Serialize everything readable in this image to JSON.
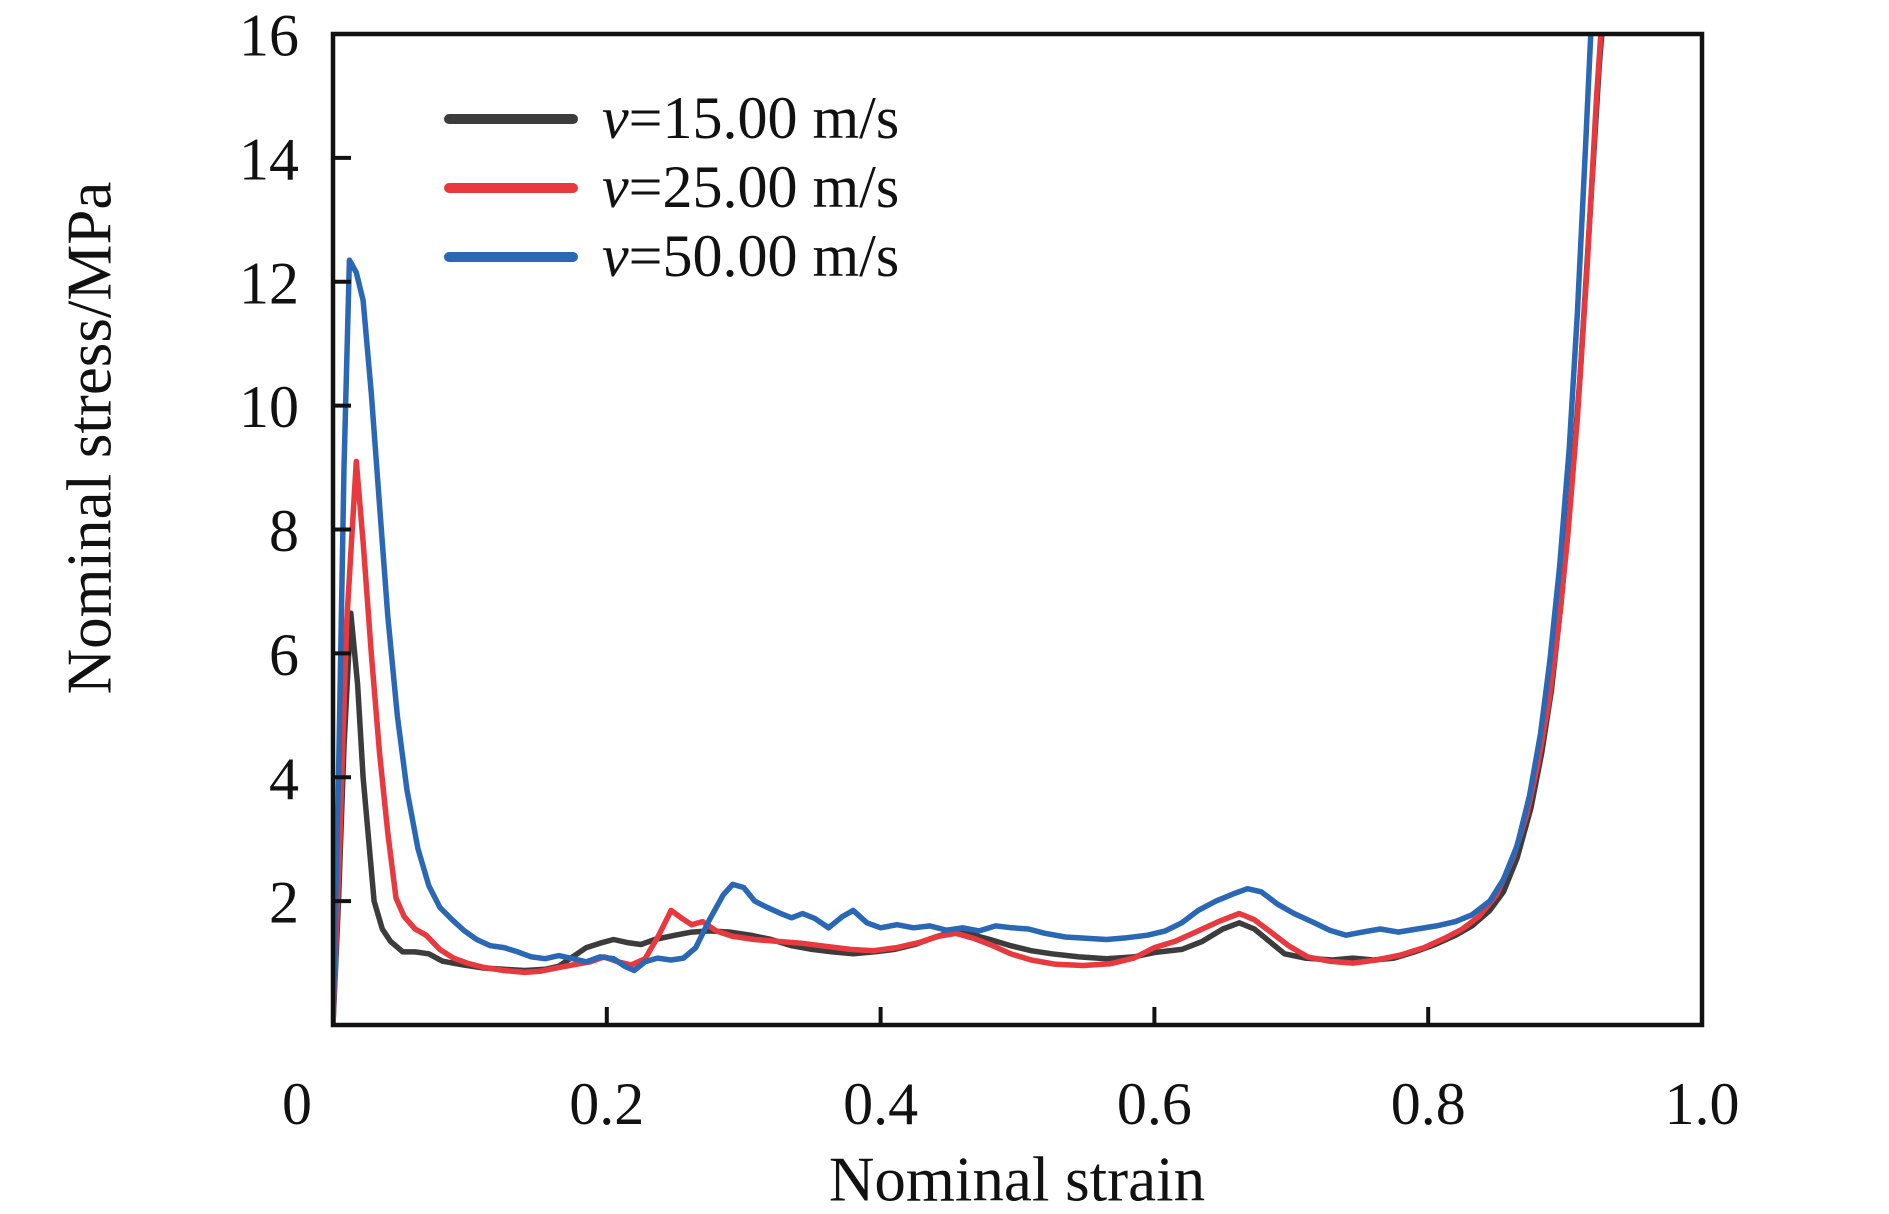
{
  "chart_data": {
    "type": "line",
    "title": "",
    "xlabel": "Nominal strain",
    "ylabel": "Nominal stress/MPa",
    "xlim": [
      0,
      1.0
    ],
    "ylim": [
      0,
      16
    ],
    "x_ticks": [
      0,
      0.2,
      0.4,
      0.6,
      0.8,
      1.0
    ],
    "x_tick_labels": [
      "0",
      "0.2",
      "0.4",
      "0.6",
      "0.8",
      "1.0"
    ],
    "y_ticks": [
      2,
      4,
      6,
      8,
      10,
      12,
      14,
      16
    ],
    "y_tick_labels": [
      "2",
      "4",
      "6",
      "8",
      "10",
      "12",
      "14",
      "16"
    ],
    "grid": false,
    "frame": "full-box",
    "tick_direction": "in",
    "legend_position": "upper-left-inside",
    "axis_color": "#111111",
    "series": [
      {
        "name": "v=15.00 m/s",
        "legend_prefix": "v",
        "legend_suffix": "=15.00 m/s",
        "color": "#3C3C3C",
        "points": [
          [
            0.0,
            0.0
          ],
          [
            0.004,
            2.0
          ],
          [
            0.008,
            4.5
          ],
          [
            0.013,
            6.65
          ],
          [
            0.018,
            5.5
          ],
          [
            0.022,
            4.0
          ],
          [
            0.026,
            3.0
          ],
          [
            0.03,
            2.0
          ],
          [
            0.036,
            1.55
          ],
          [
            0.042,
            1.35
          ],
          [
            0.051,
            1.18
          ],
          [
            0.06,
            1.18
          ],
          [
            0.07,
            1.15
          ],
          [
            0.08,
            1.03
          ],
          [
            0.095,
            0.97
          ],
          [
            0.11,
            0.92
          ],
          [
            0.125,
            0.9
          ],
          [
            0.14,
            0.88
          ],
          [
            0.155,
            0.9
          ],
          [
            0.165,
            0.95
          ],
          [
            0.175,
            1.1
          ],
          [
            0.185,
            1.25
          ],
          [
            0.195,
            1.32
          ],
          [
            0.205,
            1.38
          ],
          [
            0.215,
            1.33
          ],
          [
            0.225,
            1.3
          ],
          [
            0.235,
            1.38
          ],
          [
            0.25,
            1.45
          ],
          [
            0.262,
            1.5
          ],
          [
            0.275,
            1.52
          ],
          [
            0.29,
            1.5
          ],
          [
            0.305,
            1.45
          ],
          [
            0.32,
            1.38
          ],
          [
            0.335,
            1.28
          ],
          [
            0.35,
            1.22
          ],
          [
            0.365,
            1.18
          ],
          [
            0.38,
            1.15
          ],
          [
            0.395,
            1.18
          ],
          [
            0.41,
            1.22
          ],
          [
            0.425,
            1.3
          ],
          [
            0.44,
            1.42
          ],
          [
            0.452,
            1.5
          ],
          [
            0.465,
            1.47
          ],
          [
            0.48,
            1.38
          ],
          [
            0.495,
            1.28
          ],
          [
            0.51,
            1.2
          ],
          [
            0.525,
            1.15
          ],
          [
            0.545,
            1.1
          ],
          [
            0.565,
            1.07
          ],
          [
            0.585,
            1.1
          ],
          [
            0.6,
            1.17
          ],
          [
            0.62,
            1.22
          ],
          [
            0.635,
            1.35
          ],
          [
            0.65,
            1.55
          ],
          [
            0.662,
            1.65
          ],
          [
            0.673,
            1.55
          ],
          [
            0.684,
            1.35
          ],
          [
            0.695,
            1.15
          ],
          [
            0.71,
            1.08
          ],
          [
            0.73,
            1.05
          ],
          [
            0.745,
            1.08
          ],
          [
            0.76,
            1.05
          ],
          [
            0.775,
            1.08
          ],
          [
            0.79,
            1.18
          ],
          [
            0.805,
            1.3
          ],
          [
            0.82,
            1.45
          ],
          [
            0.832,
            1.6
          ],
          [
            0.845,
            1.85
          ],
          [
            0.855,
            2.15
          ],
          [
            0.865,
            2.7
          ],
          [
            0.875,
            3.5
          ],
          [
            0.883,
            4.4
          ],
          [
            0.89,
            5.4
          ],
          [
            0.897,
            6.8
          ],
          [
            0.904,
            8.5
          ],
          [
            0.911,
            10.5
          ],
          [
            0.918,
            13.0
          ],
          [
            0.925,
            15.5
          ],
          [
            0.929,
            16.6
          ]
        ]
      },
      {
        "name": "v=25.00 m/s",
        "legend_prefix": "v",
        "legend_suffix": "=25.00 m/s",
        "color": "#E8393F",
        "points": [
          [
            0.0,
            0.0
          ],
          [
            0.005,
            3.0
          ],
          [
            0.01,
            6.5
          ],
          [
            0.017,
            9.1
          ],
          [
            0.022,
            7.8
          ],
          [
            0.028,
            6.0
          ],
          [
            0.034,
            4.4
          ],
          [
            0.04,
            3.1
          ],
          [
            0.046,
            2.05
          ],
          [
            0.052,
            1.75
          ],
          [
            0.06,
            1.55
          ],
          [
            0.068,
            1.45
          ],
          [
            0.078,
            1.22
          ],
          [
            0.088,
            1.08
          ],
          [
            0.098,
            1.0
          ],
          [
            0.11,
            0.93
          ],
          [
            0.125,
            0.88
          ],
          [
            0.14,
            0.85
          ],
          [
            0.152,
            0.87
          ],
          [
            0.163,
            0.92
          ],
          [
            0.175,
            0.97
          ],
          [
            0.188,
            1.02
          ],
          [
            0.198,
            1.1
          ],
          [
            0.208,
            1.02
          ],
          [
            0.218,
            0.97
          ],
          [
            0.228,
            1.07
          ],
          [
            0.238,
            1.45
          ],
          [
            0.247,
            1.85
          ],
          [
            0.255,
            1.72
          ],
          [
            0.262,
            1.62
          ],
          [
            0.27,
            1.67
          ],
          [
            0.28,
            1.52
          ],
          [
            0.292,
            1.43
          ],
          [
            0.308,
            1.38
          ],
          [
            0.325,
            1.35
          ],
          [
            0.342,
            1.32
          ],
          [
            0.36,
            1.27
          ],
          [
            0.378,
            1.22
          ],
          [
            0.395,
            1.2
          ],
          [
            0.412,
            1.25
          ],
          [
            0.428,
            1.33
          ],
          [
            0.442,
            1.43
          ],
          [
            0.455,
            1.48
          ],
          [
            0.468,
            1.4
          ],
          [
            0.482,
            1.28
          ],
          [
            0.495,
            1.15
          ],
          [
            0.51,
            1.05
          ],
          [
            0.528,
            0.98
          ],
          [
            0.548,
            0.96
          ],
          [
            0.568,
            0.99
          ],
          [
            0.585,
            1.08
          ],
          [
            0.6,
            1.25
          ],
          [
            0.615,
            1.35
          ],
          [
            0.63,
            1.5
          ],
          [
            0.648,
            1.68
          ],
          [
            0.662,
            1.8
          ],
          [
            0.673,
            1.7
          ],
          [
            0.685,
            1.5
          ],
          [
            0.698,
            1.28
          ],
          [
            0.712,
            1.1
          ],
          [
            0.728,
            1.03
          ],
          [
            0.745,
            1.0
          ],
          [
            0.762,
            1.05
          ],
          [
            0.78,
            1.13
          ],
          [
            0.797,
            1.25
          ],
          [
            0.812,
            1.4
          ],
          [
            0.825,
            1.55
          ],
          [
            0.837,
            1.75
          ],
          [
            0.85,
            2.1
          ],
          [
            0.862,
            2.7
          ],
          [
            0.872,
            3.4
          ],
          [
            0.88,
            4.2
          ],
          [
            0.888,
            5.2
          ],
          [
            0.895,
            6.4
          ],
          [
            0.902,
            7.9
          ],
          [
            0.909,
            9.8
          ],
          [
            0.916,
            12.2
          ],
          [
            0.923,
            15.0
          ],
          [
            0.928,
            16.6
          ]
        ]
      },
      {
        "name": "v=50.00 m/s",
        "legend_prefix": "v",
        "legend_suffix": "=50.00 m/s",
        "color": "#2A68B5",
        "points": [
          [
            0.0,
            0.0
          ],
          [
            0.004,
            4.0
          ],
          [
            0.008,
            9.0
          ],
          [
            0.012,
            12.35
          ],
          [
            0.017,
            12.15
          ],
          [
            0.022,
            11.7
          ],
          [
            0.028,
            10.2
          ],
          [
            0.034,
            8.4
          ],
          [
            0.04,
            6.6
          ],
          [
            0.047,
            5.0
          ],
          [
            0.054,
            3.8
          ],
          [
            0.062,
            2.85
          ],
          [
            0.07,
            2.25
          ],
          [
            0.078,
            1.9
          ],
          [
            0.087,
            1.7
          ],
          [
            0.096,
            1.52
          ],
          [
            0.105,
            1.38
          ],
          [
            0.115,
            1.28
          ],
          [
            0.125,
            1.25
          ],
          [
            0.135,
            1.18
          ],
          [
            0.145,
            1.1
          ],
          [
            0.155,
            1.07
          ],
          [
            0.165,
            1.12
          ],
          [
            0.175,
            1.07
          ],
          [
            0.185,
            1.02
          ],
          [
            0.195,
            1.1
          ],
          [
            0.205,
            1.07
          ],
          [
            0.213,
            0.95
          ],
          [
            0.22,
            0.88
          ],
          [
            0.228,
            1.02
          ],
          [
            0.237,
            1.08
          ],
          [
            0.247,
            1.05
          ],
          [
            0.256,
            1.08
          ],
          [
            0.265,
            1.25
          ],
          [
            0.275,
            1.7
          ],
          [
            0.285,
            2.1
          ],
          [
            0.292,
            2.27
          ],
          [
            0.3,
            2.22
          ],
          [
            0.308,
            2.0
          ],
          [
            0.317,
            1.9
          ],
          [
            0.327,
            1.8
          ],
          [
            0.335,
            1.73
          ],
          [
            0.343,
            1.8
          ],
          [
            0.352,
            1.72
          ],
          [
            0.362,
            1.57
          ],
          [
            0.372,
            1.75
          ],
          [
            0.38,
            1.85
          ],
          [
            0.39,
            1.65
          ],
          [
            0.4,
            1.57
          ],
          [
            0.412,
            1.62
          ],
          [
            0.424,
            1.57
          ],
          [
            0.436,
            1.6
          ],
          [
            0.448,
            1.53
          ],
          [
            0.46,
            1.57
          ],
          [
            0.472,
            1.52
          ],
          [
            0.484,
            1.6
          ],
          [
            0.496,
            1.57
          ],
          [
            0.508,
            1.55
          ],
          [
            0.52,
            1.48
          ],
          [
            0.535,
            1.42
          ],
          [
            0.55,
            1.4
          ],
          [
            0.565,
            1.38
          ],
          [
            0.58,
            1.41
          ],
          [
            0.595,
            1.45
          ],
          [
            0.608,
            1.52
          ],
          [
            0.62,
            1.65
          ],
          [
            0.632,
            1.85
          ],
          [
            0.645,
            2.0
          ],
          [
            0.658,
            2.12
          ],
          [
            0.668,
            2.2
          ],
          [
            0.678,
            2.15
          ],
          [
            0.69,
            1.95
          ],
          [
            0.702,
            1.8
          ],
          [
            0.715,
            1.67
          ],
          [
            0.728,
            1.53
          ],
          [
            0.74,
            1.45
          ],
          [
            0.752,
            1.5
          ],
          [
            0.765,
            1.55
          ],
          [
            0.778,
            1.5
          ],
          [
            0.792,
            1.55
          ],
          [
            0.806,
            1.6
          ],
          [
            0.82,
            1.67
          ],
          [
            0.832,
            1.78
          ],
          [
            0.845,
            2.0
          ],
          [
            0.855,
            2.35
          ],
          [
            0.865,
            2.9
          ],
          [
            0.874,
            3.7
          ],
          [
            0.882,
            4.7
          ],
          [
            0.889,
            5.9
          ],
          [
            0.896,
            7.4
          ],
          [
            0.903,
            9.3
          ],
          [
            0.909,
            11.5
          ],
          [
            0.915,
            14.2
          ],
          [
            0.92,
            16.6
          ]
        ]
      }
    ]
  }
}
